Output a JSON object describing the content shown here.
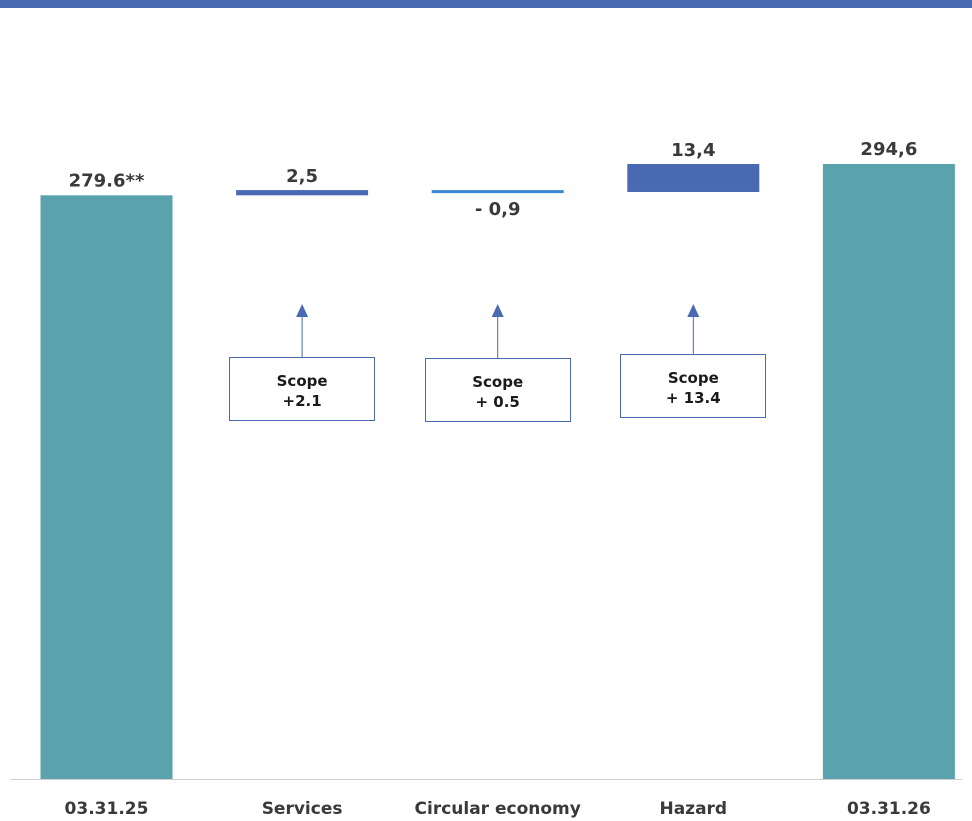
{
  "chart_data": {
    "type": "bar",
    "subtype": "waterfall",
    "categories": [
      "03.31.25",
      "Services",
      "Circular economy",
      "Hazard",
      "03.31.26"
    ],
    "values": [
      279.6,
      2.5,
      -0.9,
      13.4,
      294.6
    ],
    "value_labels": [
      "279.6**",
      "2,5",
      "- 0,9",
      "13,4",
      "294,6"
    ],
    "title": "",
    "xlabel": "",
    "ylabel": "",
    "grid": false,
    "legend": "none",
    "annotations": [
      {
        "category": "Services",
        "line1": "Scope",
        "line2": "+2.1",
        "value": 2.1
      },
      {
        "category": "Circular economy",
        "line1": "Scope",
        "line2": "+ 0.5",
        "value": 0.5
      },
      {
        "category": "Hazard",
        "line1": "Scope",
        "line2": "+ 13.4",
        "value": 13.4
      }
    ]
  },
  "colors": {
    "top_bar": "#4a69b3",
    "total_bar": "#5aa3ad",
    "increase_bar": "#4a69b3",
    "decrease_bar": "#3a86d6",
    "axis": "#d0d0d0",
    "arrow": "#4a69b3"
  }
}
